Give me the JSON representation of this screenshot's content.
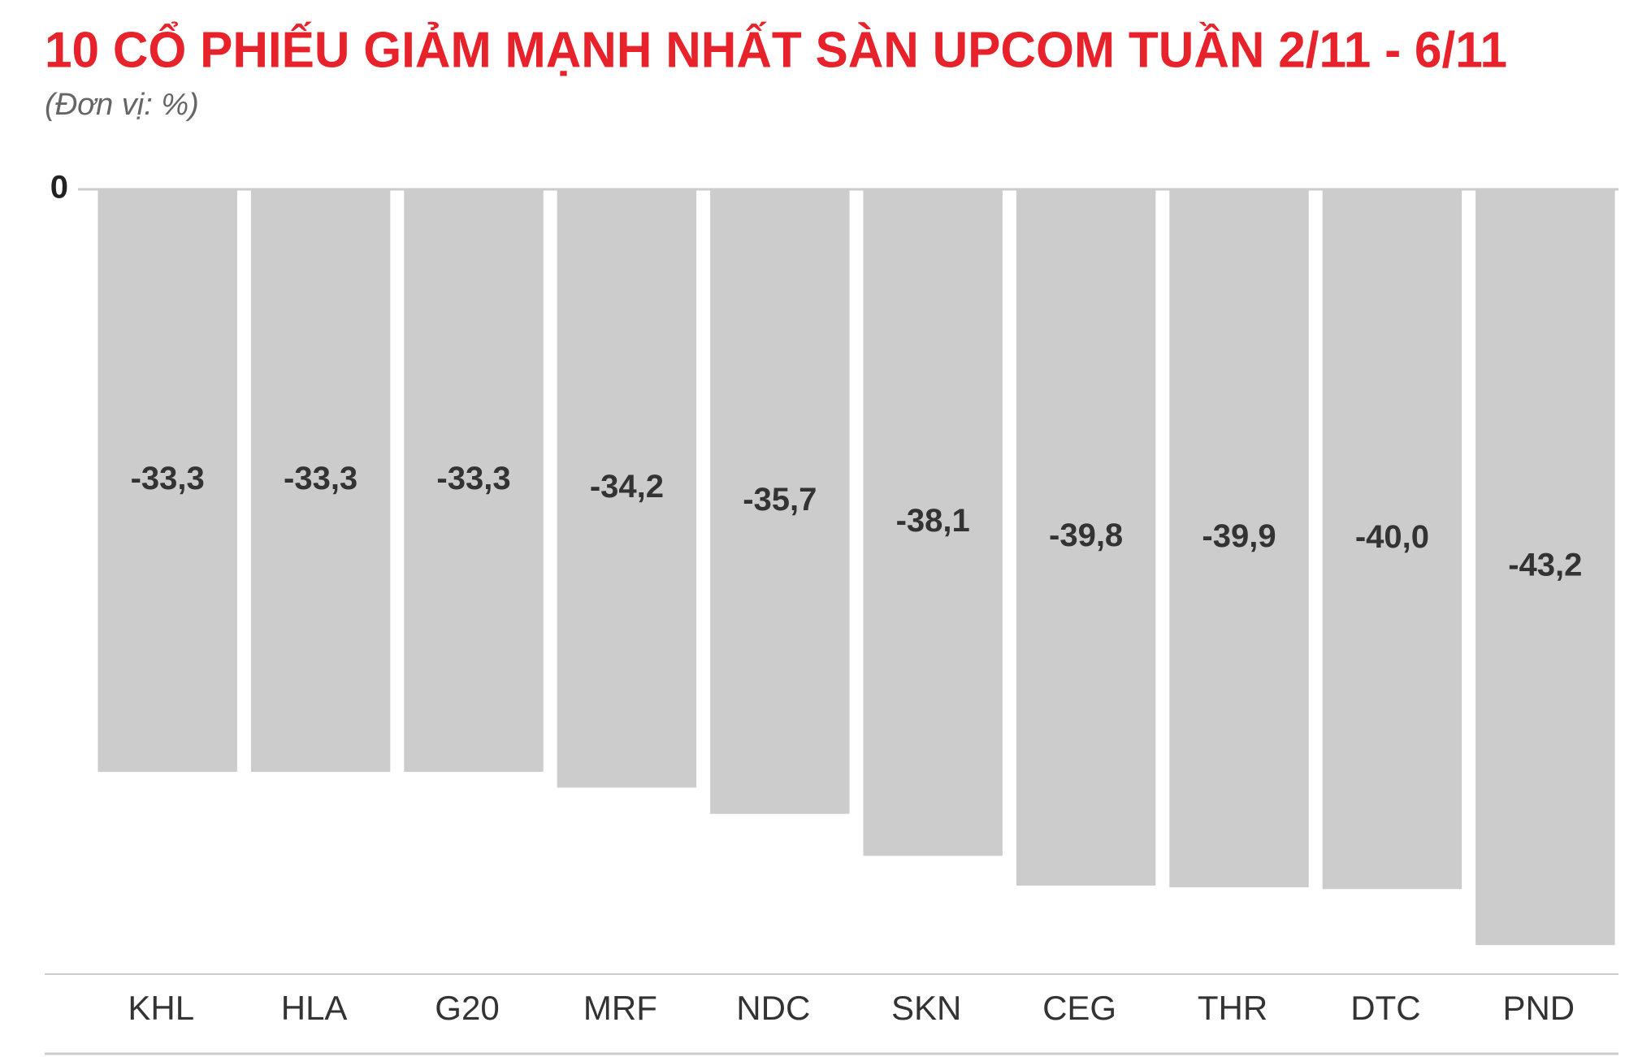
{
  "chart_data": {
    "type": "bar",
    "title": "10 CỔ PHIẾU GIẢM MẠNH NHẤT SÀN UPCOM TUẦN 2/11 - 6/11",
    "subtitle": "(Đơn vị: %)",
    "categories": [
      "KHL",
      "HLA",
      "G20",
      "MRF",
      "NDC",
      "SKN",
      "CEG",
      "THR",
      "DTC",
      "PND"
    ],
    "values": [
      -33.3,
      -33.3,
      -33.3,
      -34.2,
      -35.7,
      -38.1,
      -39.8,
      -39.9,
      -40.0,
      -43.2
    ],
    "value_labels": [
      "-33,3",
      "-33,3",
      "-33,3",
      "-34,2",
      "-35,7",
      "-38,1",
      "-39,8",
      "-39,9",
      "-40,0",
      "-43,2"
    ],
    "color": "#cccccc",
    "ylim": [
      -45,
      0
    ],
    "yticks": [
      0
    ]
  }
}
